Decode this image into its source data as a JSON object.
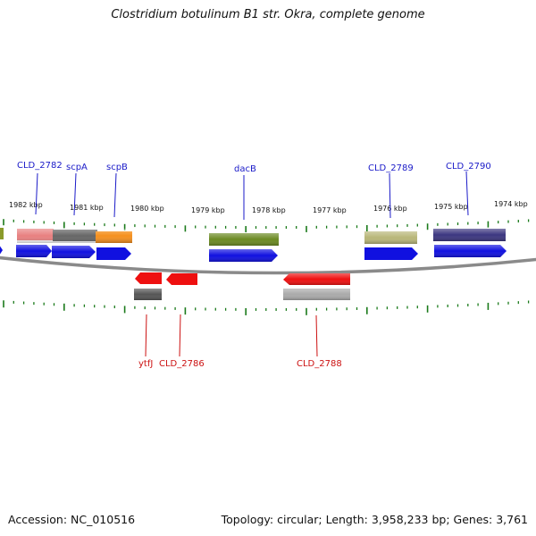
{
  "title": "Clostridium botulinum B1 str. Okra, complete genome",
  "footer": {
    "accession": "Accession: NC_010516",
    "topology": "Topology: circular; Length: 3,958,233 bp; Genes: 3,761"
  },
  "colors": {
    "forward_cds": "#1010e0",
    "reverse_cds": "#ee1010",
    "backbone": "#8a8a8a",
    "tick": "#1a7a1a",
    "label_forward": "#1a1ac8",
    "label_reverse": "#cc1111"
  },
  "scale_labels": [
    "1982 kbp",
    "1981 kbp",
    "1980 kbp",
    "1979 kbp",
    "1978 kbp",
    "1977 kbp",
    "1976 kbp",
    "1975 kbp",
    "1974 kbp"
  ],
  "forward_gene_labels": [
    "CLD_2782",
    "scpA",
    "scpB",
    "dacB",
    "CLD_2789",
    "CLD_2790"
  ],
  "reverse_gene_labels": [
    "ytfJ",
    "CLD_2786",
    "CLD_2788"
  ]
}
